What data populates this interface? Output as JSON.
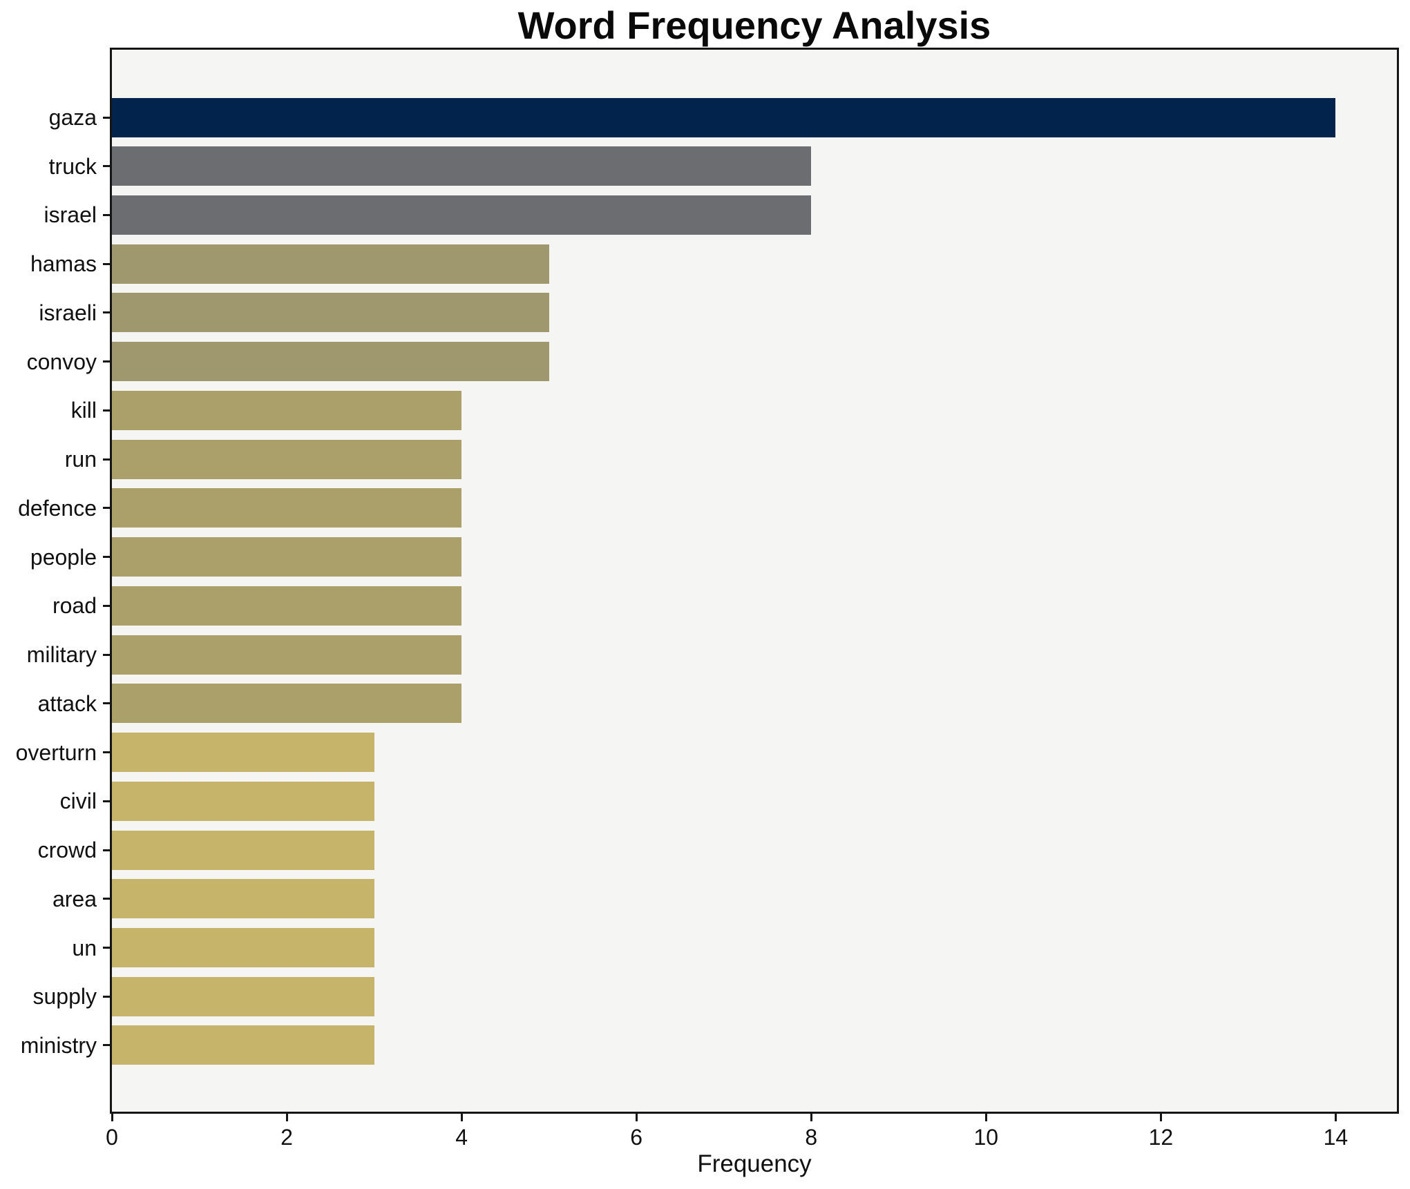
{
  "chart_data": {
    "type": "bar",
    "orientation": "horizontal",
    "title": "Word Frequency Analysis",
    "xlabel": "Frequency",
    "ylabel": "",
    "categories": [
      "gaza",
      "truck",
      "israel",
      "hamas",
      "israeli",
      "convoy",
      "kill",
      "run",
      "defence",
      "people",
      "road",
      "military",
      "attack",
      "overturn",
      "civil",
      "crowd",
      "area",
      "un",
      "supply",
      "ministry"
    ],
    "values": [
      14,
      8,
      8,
      5,
      5,
      5,
      4,
      4,
      4,
      4,
      4,
      4,
      4,
      3,
      3,
      3,
      3,
      3,
      3,
      3
    ],
    "bar_colors": [
      "#02234c",
      "#6c6d71",
      "#6c6d71",
      "#9f976e",
      "#9f976e",
      "#9f976e",
      "#aba069",
      "#aba069",
      "#aba069",
      "#aba069",
      "#aba069",
      "#aba069",
      "#aba069",
      "#c5b469",
      "#c5b469",
      "#c5b469",
      "#c5b469",
      "#c5b469",
      "#c5b469",
      "#c5b469"
    ],
    "xlim": [
      0,
      14.7
    ],
    "xticks": [
      0,
      2,
      4,
      6,
      8,
      10,
      12,
      14
    ],
    "grid": false,
    "legend": "none",
    "plot_background": "#f5f5f4",
    "spine_color": "#151515",
    "text_color": "#111111"
  }
}
